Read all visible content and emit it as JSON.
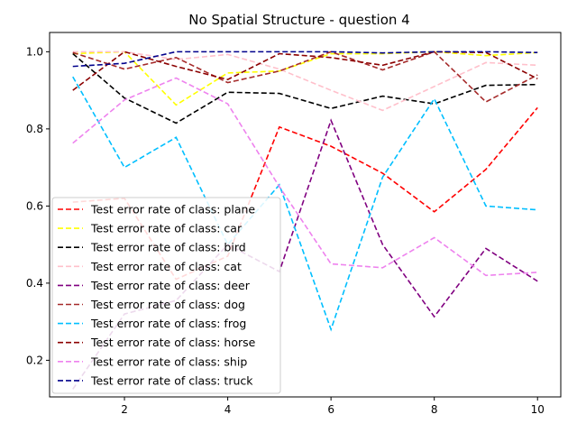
{
  "chart_data": {
    "type": "line",
    "title": "No Spatial Structure - question 4",
    "xlabel": "",
    "ylabel": "",
    "x": [
      1,
      2,
      3,
      4,
      5,
      6,
      7,
      8,
      9,
      10
    ],
    "xlim": [
      0.55,
      10.45
    ],
    "ylim": [
      0.105,
      1.05
    ],
    "xticks": [
      2,
      4,
      6,
      8,
      10
    ],
    "yticks": [
      0.2,
      0.4,
      0.6,
      0.8,
      1.0
    ],
    "ytick_labels": [
      "0.2",
      "0.4",
      "0.6",
      "0.8",
      "1.0"
    ],
    "grid": false,
    "legend_position": "lower-left",
    "series": [
      {
        "name": "Test error rate of class: plane",
        "color": "#ff0000",
        "values": [
          0.61,
          0.62,
          0.41,
          0.47,
          0.805,
          0.755,
          0.685,
          0.585,
          0.695,
          0.855
        ]
      },
      {
        "name": "Test error rate of class: car",
        "color": "#ffff00",
        "values": [
          0.995,
          1.0,
          0.862,
          0.945,
          0.95,
          0.995,
          0.995,
          1.0,
          0.99,
          0.998
        ]
      },
      {
        "name": "Test error rate of class: bird",
        "color": "#000000",
        "values": [
          0.995,
          0.88,
          0.815,
          0.895,
          0.892,
          0.853,
          0.885,
          0.865,
          0.913,
          0.915
        ]
      },
      {
        "name": "Test error rate of class: cat",
        "color": "#ffc0cb",
        "values": [
          1.0,
          1.0,
          0.98,
          0.993,
          0.955,
          0.9,
          0.848,
          0.91,
          0.972,
          0.965
        ]
      },
      {
        "name": "Test error rate of class: deer",
        "color": "#800080",
        "values": [
          0.125,
          0.32,
          0.355,
          0.5,
          0.43,
          0.822,
          0.5,
          0.313,
          0.49,
          0.405
        ]
      },
      {
        "name": "Test error rate of class: dog",
        "color": "#a52a2a",
        "values": [
          0.998,
          0.955,
          0.985,
          0.92,
          0.95,
          1.0,
          0.953,
          1.0,
          0.87,
          0.94
        ]
      },
      {
        "name": "Test error rate of class: frog",
        "color": "#00bfff",
        "values": [
          0.935,
          0.7,
          0.778,
          0.5,
          0.655,
          0.28,
          0.675,
          0.878,
          0.6,
          0.59
        ]
      },
      {
        "name": "Test error rate of class: horse",
        "color": "#8b0000",
        "values": [
          0.9,
          1.0,
          0.962,
          0.928,
          0.995,
          0.985,
          0.965,
          1.0,
          0.998,
          0.93
        ]
      },
      {
        "name": "Test error rate of class: ship",
        "color": "#ee82ee",
        "values": [
          0.763,
          0.875,
          0.932,
          0.865,
          0.65,
          0.45,
          0.44,
          0.518,
          0.42,
          0.428
        ]
      },
      {
        "name": "Test error rate of class: truck",
        "color": "#00008b",
        "values": [
          0.962,
          0.97,
          1.0,
          1.0,
          1.0,
          1.0,
          0.997,
          1.0,
          1.0,
          0.998
        ]
      }
    ]
  }
}
